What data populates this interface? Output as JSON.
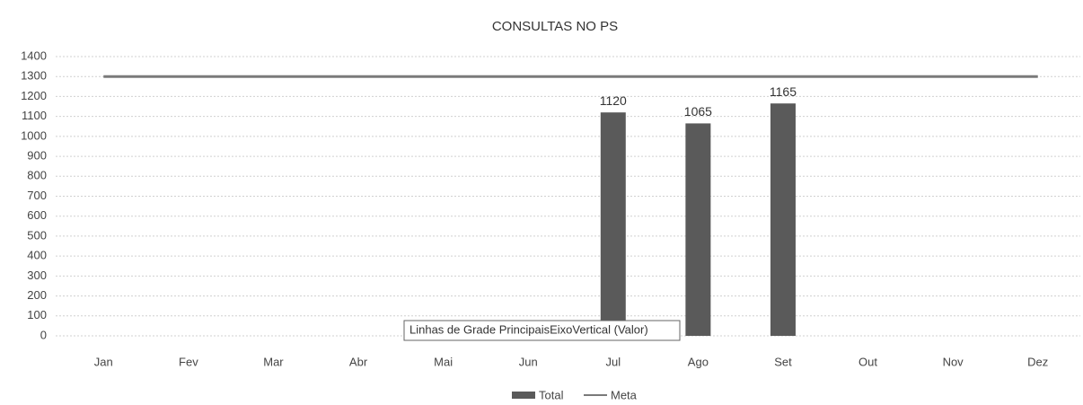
{
  "chart_data": {
    "type": "combo",
    "title": "CONSULTAS NO PS",
    "categories": [
      "Jan",
      "Fev",
      "Mar",
      "Abr",
      "Mai",
      "Jun",
      "Jul",
      "Ago",
      "Set",
      "Out",
      "Nov",
      "Dez"
    ],
    "series": [
      {
        "name": "Total",
        "type": "bar",
        "color": "#5a5a5a",
        "values": [
          null,
          null,
          null,
          null,
          null,
          null,
          1120,
          1065,
          1165,
          null,
          null,
          null
        ]
      },
      {
        "name": "Meta",
        "type": "line",
        "color": "#7a7a7a",
        "values": [
          1300,
          1300,
          1300,
          1300,
          1300,
          1300,
          1300,
          1300,
          1300,
          1300,
          1300,
          1300
        ]
      }
    ],
    "ylim": [
      0,
      1400
    ],
    "yticks": [
      0,
      100,
      200,
      300,
      400,
      500,
      600,
      700,
      800,
      900,
      1000,
      1100,
      1200,
      1300,
      1400
    ],
    "grid": true,
    "legend": "bottom",
    "tooltip": "Linhas de Grade PrincipaisEixoVertical (Valor)"
  }
}
